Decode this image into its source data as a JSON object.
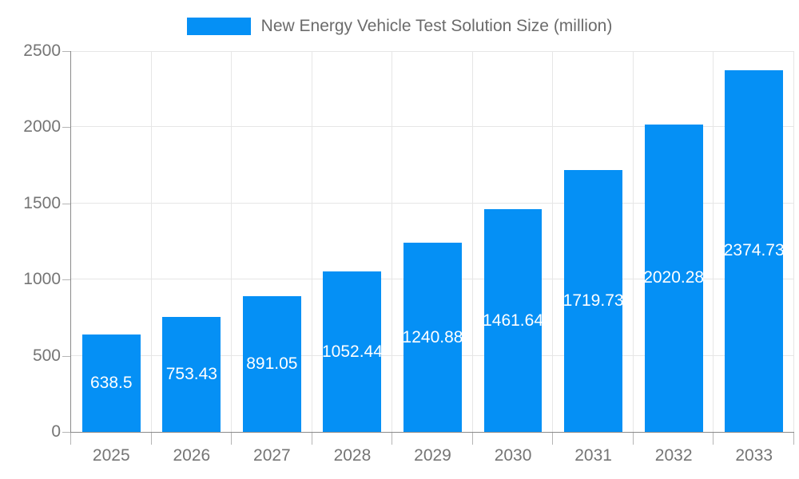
{
  "chart_data": {
    "type": "bar",
    "title": "New Energy Vehicle Test Solution Size (million)",
    "legend": {
      "label": "New Energy Vehicle Test Solution Size (million)",
      "position": "top"
    },
    "categories": [
      "2025",
      "2026",
      "2027",
      "2028",
      "2029",
      "2030",
      "2031",
      "2032",
      "2033"
    ],
    "values": [
      638.5,
      753.43,
      891.05,
      1052.44,
      1240.88,
      1461.64,
      1719.73,
      2020.28,
      2374.73
    ],
    "value_labels": [
      "638.5",
      "753.43",
      "891.05",
      "1052.44",
      "1240.88",
      "1461.64",
      "1719.73",
      "2020.28",
      "2374.73"
    ],
    "xlabel": "",
    "ylabel": "",
    "ylim": [
      0,
      2500
    ],
    "y_ticks": [
      0,
      500,
      1000,
      1500,
      2000,
      2500
    ],
    "grid": true,
    "colors": {
      "bar": "#0590f5",
      "value_label": "#ffffff",
      "axis_text": "#757575",
      "legend_text": "#6b6b6b",
      "gridline": "#e6e6e6",
      "axis_line": "#8a8a8a",
      "tick": "#b5b5b5"
    }
  }
}
